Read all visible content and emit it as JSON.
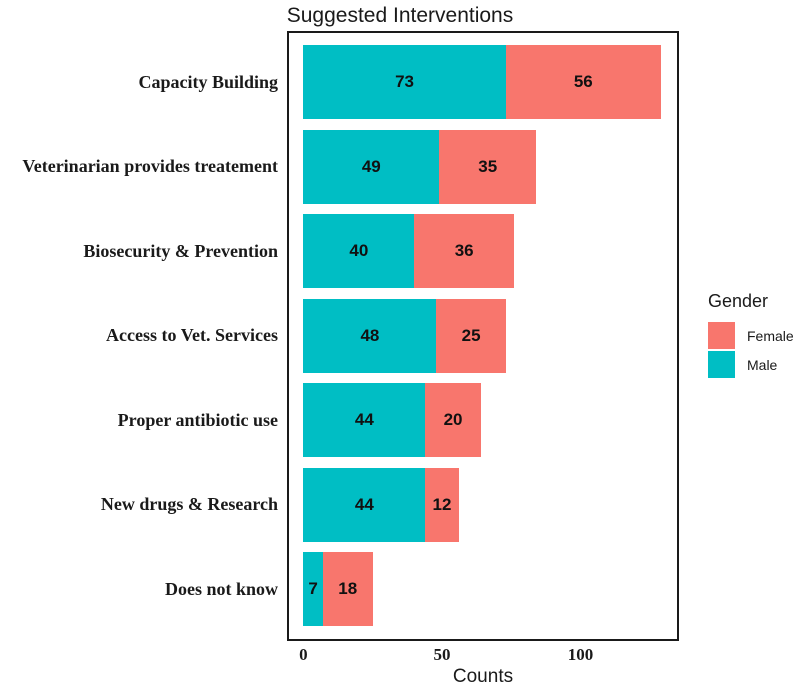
{
  "title": "Suggested Interventions",
  "x_axis": {
    "label": "Counts",
    "tick_labels": [
      "0",
      "50",
      "100"
    ]
  },
  "legend": {
    "title": "Gender",
    "items": [
      {
        "label": "Female",
        "color": "#F8766D"
      },
      {
        "label": "Male",
        "color": "#00BEC4"
      }
    ]
  },
  "chart_data": {
    "type": "bar",
    "orientation": "horizontal",
    "stacked": true,
    "title": "Suggested Interventions",
    "xlabel": "Counts",
    "ylabel": "",
    "categories": [
      "Capacity Building",
      "Veterinarian provides treatement",
      "Biosecurity & Prevention",
      "Access to Vet. Services",
      "Proper antibiotic use",
      "New drugs & Research",
      "Does not know"
    ],
    "series": [
      {
        "name": "Male",
        "color": "#00BEC4",
        "values": [
          73,
          49,
          40,
          48,
          44,
          44,
          7
        ]
      },
      {
        "name": "Female",
        "color": "#F8766D",
        "values": [
          56,
          35,
          36,
          25,
          20,
          12,
          18
        ]
      }
    ],
    "totals": [
      129,
      84,
      76,
      73,
      64,
      56,
      25
    ],
    "x_ticks": [
      0,
      50,
      100
    ],
    "xlim": [
      -5.2,
      134.8
    ],
    "grid": false,
    "bar_value_labels": true,
    "legend_title": "Gender",
    "legend_position": "right",
    "legend_order": [
      "Female",
      "Male"
    ]
  }
}
